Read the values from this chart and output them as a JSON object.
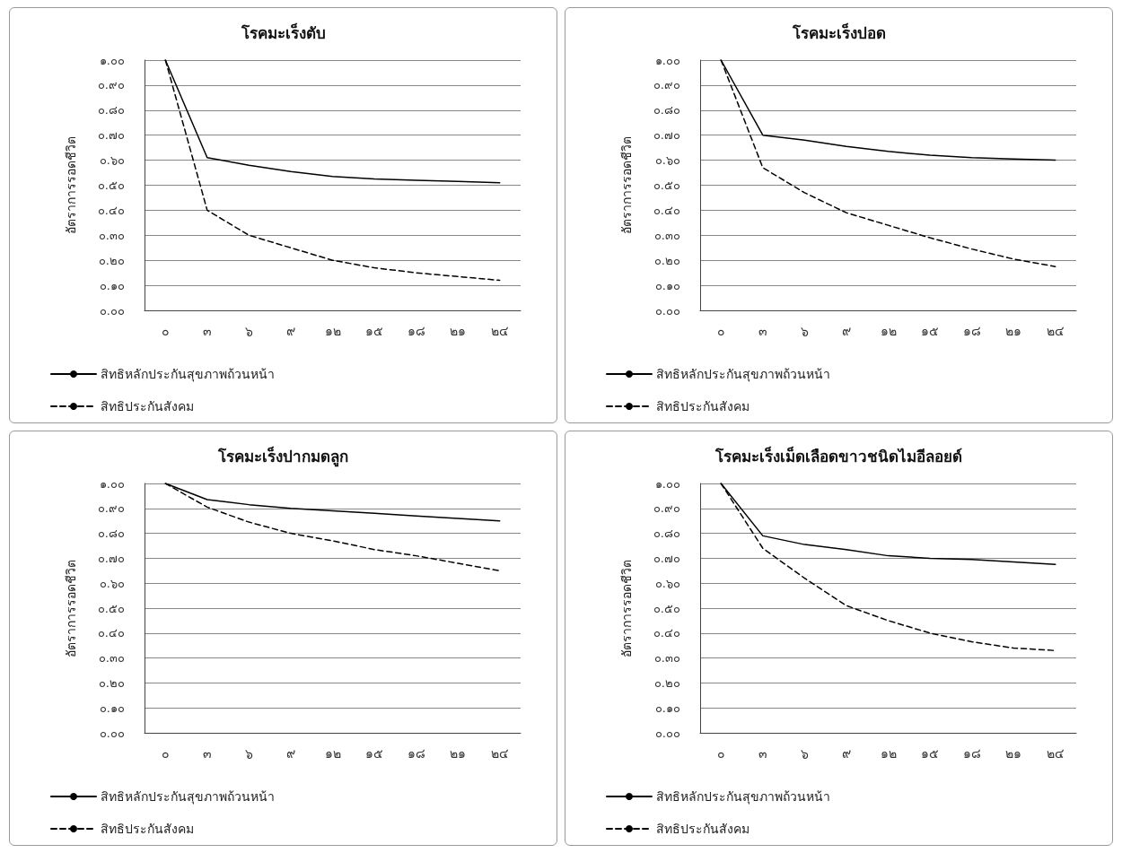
{
  "chart_data": [
    {
      "type": "line",
      "title": "โรคมะเร็งตับ",
      "ylabel": "อัตราการรอดชีวิต",
      "categories": [
        "๐",
        "๓",
        "๖",
        "๙",
        "๑๒",
        "๑๕",
        "๑๘",
        "๒๑",
        "๒๔"
      ],
      "series": [
        {
          "name": "สิทธิหลักประกันสุขภาพถ้วนหน้า",
          "color": "#000000",
          "line_style": "solid",
          "values": [
            1.0,
            0.61,
            0.58,
            0.555,
            0.535,
            0.525,
            0.52,
            0.515,
            0.51
          ]
        },
        {
          "name": "สิทธิประกันสังคม",
          "color": "#000000",
          "line_style": "dashed",
          "values": [
            1.0,
            0.4,
            0.3,
            0.25,
            0.2,
            0.17,
            0.15,
            0.135,
            0.12
          ]
        }
      ],
      "ylim": [
        0,
        1
      ],
      "yticks": [
        {
          "value": 0,
          "label": "๐.๐๐"
        },
        {
          "value": 0.1,
          "label": "๐.๑๐"
        },
        {
          "value": 0.2,
          "label": "๐.๒๐"
        },
        {
          "value": 0.3,
          "label": "๐.๓๐"
        },
        {
          "value": 0.4,
          "label": "๐.๔๐"
        },
        {
          "value": 0.5,
          "label": "๐.๕๐"
        },
        {
          "value": 0.6,
          "label": "๐.๖๐"
        },
        {
          "value": 0.7,
          "label": "๐.๗๐"
        },
        {
          "value": 0.8,
          "label": "๐.๘๐"
        },
        {
          "value": 0.9,
          "label": "๐.๙๐"
        },
        {
          "value": 1,
          "label": "๑.๐๐"
        }
      ],
      "grid": "y",
      "legend": "bottom",
      "marker": "none"
    },
    {
      "type": "line",
      "title": "โรคมะเร็งปอด",
      "ylabel": "อัตราการรอดชีวิต",
      "categories": [
        "๐",
        "๓",
        "๖",
        "๙",
        "๑๒",
        "๑๕",
        "๑๘",
        "๒๑",
        "๒๔"
      ],
      "series": [
        {
          "name": "สิทธิหลักประกันสุขภาพถ้วนหน้า",
          "color": "#000000",
          "line_style": "solid",
          "values": [
            1.0,
            0.7,
            0.68,
            0.655,
            0.635,
            0.62,
            0.61,
            0.605,
            0.6
          ]
        },
        {
          "name": "สิทธิประกันสังคม",
          "color": "#000000",
          "line_style": "dashed",
          "values": [
            1.0,
            0.57,
            0.47,
            0.39,
            0.34,
            0.29,
            0.245,
            0.205,
            0.175
          ]
        }
      ],
      "ylim": [
        0,
        1
      ],
      "yticks": [
        {
          "value": 0,
          "label": "๐.๐๐"
        },
        {
          "value": 0.1,
          "label": "๐.๑๐"
        },
        {
          "value": 0.2,
          "label": "๐.๒๐"
        },
        {
          "value": 0.3,
          "label": "๐.๓๐"
        },
        {
          "value": 0.4,
          "label": "๐.๔๐"
        },
        {
          "value": 0.5,
          "label": "๐.๕๐"
        },
        {
          "value": 0.6,
          "label": "๐.๖๐"
        },
        {
          "value": 0.7,
          "label": "๐.๗๐"
        },
        {
          "value": 0.8,
          "label": "๐.๘๐"
        },
        {
          "value": 0.9,
          "label": "๐.๙๐"
        },
        {
          "value": 1,
          "label": "๑.๐๐"
        }
      ],
      "grid": "y",
      "legend": "bottom",
      "marker": "none"
    },
    {
      "type": "line",
      "title": "โรคมะเร็งปากมดลูก",
      "ylabel": "อัตราการรอดชีวิต",
      "categories": [
        "๐",
        "๓",
        "๖",
        "๙",
        "๑๒",
        "๑๕",
        "๑๘",
        "๒๑",
        "๒๔"
      ],
      "series": [
        {
          "name": "สิทธิหลักประกันสุขภาพถ้วนหน้า",
          "color": "#000000",
          "line_style": "solid",
          "values": [
            1.0,
            0.935,
            0.915,
            0.9,
            0.89,
            0.88,
            0.87,
            0.86,
            0.85
          ]
        },
        {
          "name": "สิทธิประกันสังคม",
          "color": "#000000",
          "line_style": "dashed",
          "values": [
            1.0,
            0.905,
            0.845,
            0.8,
            0.77,
            0.735,
            0.71,
            0.68,
            0.65
          ]
        }
      ],
      "ylim": [
        0,
        1
      ],
      "yticks": [
        {
          "value": 0,
          "label": "๐.๐๐"
        },
        {
          "value": 0.1,
          "label": "๐.๑๐"
        },
        {
          "value": 0.2,
          "label": "๐.๒๐"
        },
        {
          "value": 0.3,
          "label": "๐.๓๐"
        },
        {
          "value": 0.4,
          "label": "๐.๔๐"
        },
        {
          "value": 0.5,
          "label": "๐.๕๐"
        },
        {
          "value": 0.6,
          "label": "๐.๖๐"
        },
        {
          "value": 0.7,
          "label": "๐.๗๐"
        },
        {
          "value": 0.8,
          "label": "๐.๘๐"
        },
        {
          "value": 0.9,
          "label": "๐.๙๐"
        },
        {
          "value": 1,
          "label": "๑.๐๐"
        }
      ],
      "grid": "y",
      "legend": "bottom",
      "marker": "none"
    },
    {
      "type": "line",
      "title": "โรคมะเร็งเม็ดเลือดขาวชนิดไมอีลอยด์",
      "ylabel": "อัตราการรอดชีวิต",
      "categories": [
        "๐",
        "๓",
        "๖",
        "๙",
        "๑๒",
        "๑๕",
        "๑๘",
        "๒๑",
        "๒๔"
      ],
      "series": [
        {
          "name": "สิทธิหลักประกันสุขภาพถ้วนหน้า",
          "color": "#000000",
          "line_style": "solid",
          "values": [
            1.0,
            0.79,
            0.755,
            0.735,
            0.71,
            0.7,
            0.695,
            0.685,
            0.675
          ]
        },
        {
          "name": "สิทธิประกันสังคม",
          "color": "#000000",
          "line_style": "dashed",
          "values": [
            1.0,
            0.74,
            0.62,
            0.51,
            0.45,
            0.4,
            0.365,
            0.34,
            0.33
          ]
        }
      ],
      "ylim": [
        0,
        1
      ],
      "yticks": [
        {
          "value": 0,
          "label": "๐.๐๐"
        },
        {
          "value": 0.1,
          "label": "๐.๑๐"
        },
        {
          "value": 0.2,
          "label": "๐.๒๐"
        },
        {
          "value": 0.3,
          "label": "๐.๓๐"
        },
        {
          "value": 0.4,
          "label": "๐.๔๐"
        },
        {
          "value": 0.5,
          "label": "๐.๕๐"
        },
        {
          "value": 0.6,
          "label": "๐.๖๐"
        },
        {
          "value": 0.7,
          "label": "๐.๗๐"
        },
        {
          "value": 0.8,
          "label": "๐.๘๐"
        },
        {
          "value": 0.9,
          "label": "๐.๙๐"
        },
        {
          "value": 1,
          "label": "๑.๐๐"
        }
      ],
      "grid": "y",
      "legend": "bottom",
      "marker": "none"
    }
  ]
}
